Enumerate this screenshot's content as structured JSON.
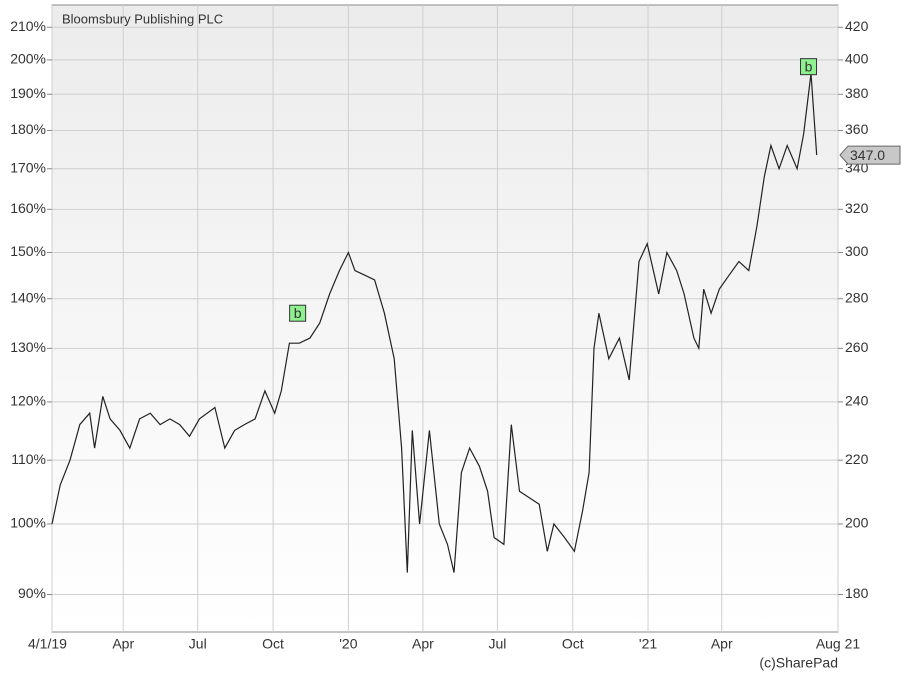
{
  "chart_data": {
    "type": "line",
    "title": "Bloomsbury Publishing PLC",
    "credit": "(c)SharePad",
    "log_scale": true,
    "grid": true,
    "xlim": [
      0,
      960
    ],
    "xticks": [
      {
        "value": 0,
        "label": "4/1/19"
      },
      {
        "value": 87,
        "label": "Apr"
      },
      {
        "value": 178,
        "label": "Jul"
      },
      {
        "value": 270,
        "label": "Oct"
      },
      {
        "value": 362,
        "label": "'20"
      },
      {
        "value": 453,
        "label": "Apr"
      },
      {
        "value": 544,
        "label": "Jul"
      },
      {
        "value": 636,
        "label": "Oct"
      },
      {
        "value": 728,
        "label": "'21"
      },
      {
        "value": 818,
        "label": "Apr"
      },
      {
        "value": 960,
        "label": "Aug 21"
      }
    ],
    "ylim": [
      85.1,
      217.1
    ],
    "yticks": [
      {
        "value": 90,
        "label": "90%"
      },
      {
        "value": 100,
        "label": "100%"
      },
      {
        "value": 110,
        "label": "110%"
      },
      {
        "value": 120,
        "label": "120%"
      },
      {
        "value": 130,
        "label": "130%"
      },
      {
        "value": 140,
        "label": "140%"
      },
      {
        "value": 150,
        "label": "150%"
      },
      {
        "value": 160,
        "label": "160%"
      },
      {
        "value": 170,
        "label": "170%"
      },
      {
        "value": 180,
        "label": "180%"
      },
      {
        "value": 190,
        "label": "190%"
      },
      {
        "value": 200,
        "label": "200%"
      },
      {
        "value": 210,
        "label": "210%"
      }
    ],
    "y2lim": [
      170.2,
      434.2
    ],
    "y2ticks": [
      180,
      200,
      220,
      240,
      260,
      280,
      300,
      320,
      340,
      360,
      380,
      400,
      420
    ],
    "series": [
      {
        "color": "#222222",
        "axis": "y2",
        "x": [
          0,
          10,
          22,
          34,
          46,
          52,
          62,
          71,
          83,
          95,
          107,
          120,
          132,
          144,
          156,
          168,
          180,
          199,
          211,
          223,
          235,
          248,
          260,
          272,
          280,
          290,
          302,
          315,
          327,
          339,
          351,
          362,
          370,
          382,
          394,
          406,
          418,
          427,
          434,
          440,
          449,
          461,
          473,
          483,
          491,
          500,
          510,
          522,
          532,
          540,
          552,
          561,
          571,
          583,
          595,
          605,
          613,
          626,
          638,
          648,
          656,
          662,
          668,
          680,
          693,
          705,
          717,
          727,
          741,
          751,
          763,
          772,
          784,
          790,
          796,
          805,
          815,
          827,
          839,
          851,
          861,
          870,
          878,
          888,
          898,
          910,
          918,
          927,
          934
        ],
        "values": [
          200,
          212,
          220,
          232,
          236,
          224,
          242,
          234,
          230,
          224,
          234,
          236,
          232,
          234,
          232,
          228,
          234,
          238,
          224,
          230,
          232,
          234,
          244,
          236,
          244,
          262,
          262,
          264,
          270,
          282,
          292,
          300,
          292,
          290,
          288,
          274,
          256,
          224,
          186,
          230,
          200,
          230,
          200,
          194,
          186,
          216,
          224,
          218,
          210,
          196,
          194,
          232,
          210,
          208,
          206,
          192,
          200,
          196,
          192,
          204,
          216,
          260,
          274,
          256,
          264,
          248,
          296,
          304,
          282,
          300,
          292,
          282,
          264,
          260,
          284,
          274,
          284,
          290,
          296,
          292,
          312,
          336,
          352,
          340,
          352,
          340,
          358,
          392,
          347
        ]
      }
    ],
    "annotations": [
      {
        "x": 300,
        "y": 274,
        "label": "b"
      },
      {
        "x": 924,
        "y": 396,
        "label": "b"
      }
    ],
    "current": {
      "value": 347,
      "label": "347.0"
    }
  }
}
